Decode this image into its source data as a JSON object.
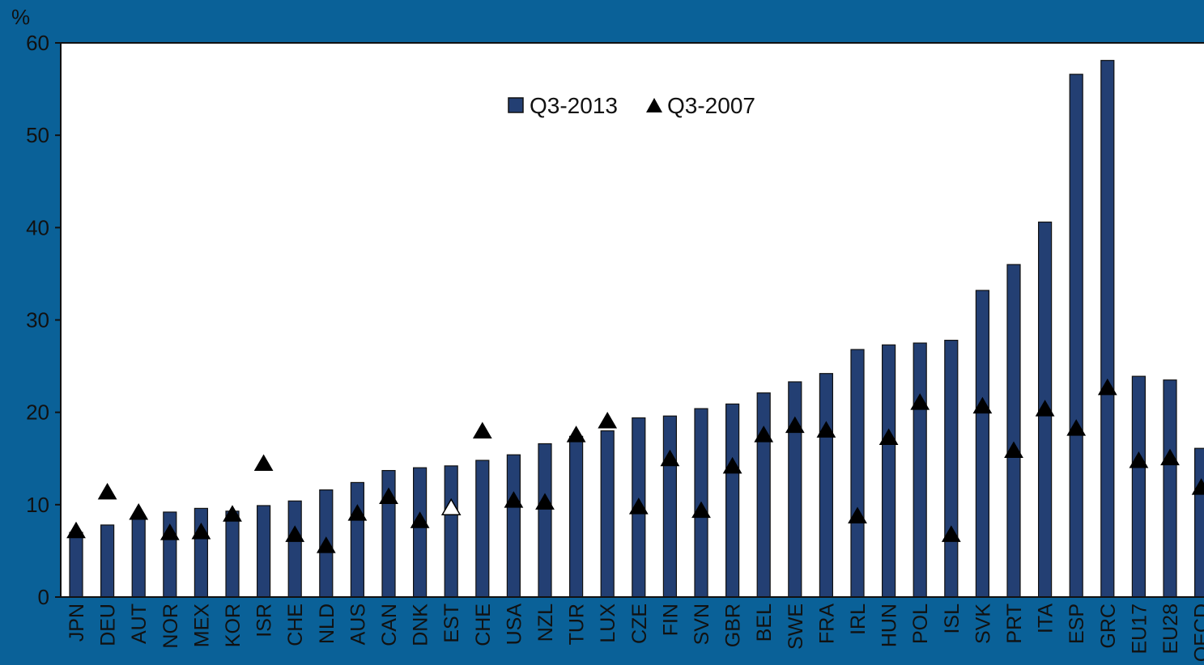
{
  "chart_data": {
    "type": "bar",
    "ylabel": "%",
    "ylim": [
      0,
      60
    ],
    "yticks": [
      0,
      10,
      20,
      30,
      40,
      50,
      60
    ],
    "grid": false,
    "legend_position": "top-center",
    "colors": {
      "background": "#0a6198",
      "plot_area": "#ffffff",
      "bar": "#233f73",
      "marker": "#000000",
      "marker_hollow": "#ffffff"
    },
    "categories": [
      "JPN",
      "DEU",
      "AUT",
      "NOR",
      "MEX",
      "KOR",
      "ISR",
      "CHE",
      "NLD",
      "AUS",
      "CAN",
      "DNK",
      "EST",
      "CHE",
      "USA",
      "NZL",
      "TUR",
      "LUX",
      "CZE",
      "FIN",
      "SVN",
      "GBR",
      "BEL",
      "SWE",
      "FRA",
      "IRL",
      "HUN",
      "POL",
      "ISL",
      "SVK",
      "PRT",
      "ITA",
      "ESP",
      "GRC",
      "EU17",
      "EU28",
      "OECD"
    ],
    "series": [
      {
        "name": "Q3-2013",
        "kind": "bar",
        "values": [
          7.0,
          7.8,
          8.8,
          9.2,
          9.6,
          9.3,
          9.9,
          10.4,
          11.6,
          12.4,
          13.7,
          14.0,
          14.2,
          14.8,
          15.4,
          16.6,
          17.4,
          18.0,
          19.4,
          19.6,
          20.4,
          20.9,
          22.1,
          23.3,
          24.2,
          26.8,
          27.3,
          27.5,
          27.8,
          33.2,
          36.0,
          40.6,
          56.6,
          58.1,
          23.9,
          23.5,
          16.1
        ]
      },
      {
        "name": "Q3-2007",
        "kind": "triangle-marker",
        "values": [
          7.2,
          11.4,
          9.2,
          7.0,
          7.1,
          9.0,
          14.5,
          6.8,
          5.6,
          9.1,
          10.9,
          8.3,
          9.7,
          18.0,
          10.5,
          10.3,
          17.6,
          19.1,
          9.8,
          15.0,
          9.4,
          14.2,
          17.6,
          18.6,
          18.1,
          8.8,
          17.3,
          21.1,
          6.8,
          20.7,
          15.9,
          20.4,
          18.3,
          22.7,
          14.8,
          15.1,
          11.9
        ],
        "hollow_categories": [
          "EST"
        ]
      }
    ]
  }
}
